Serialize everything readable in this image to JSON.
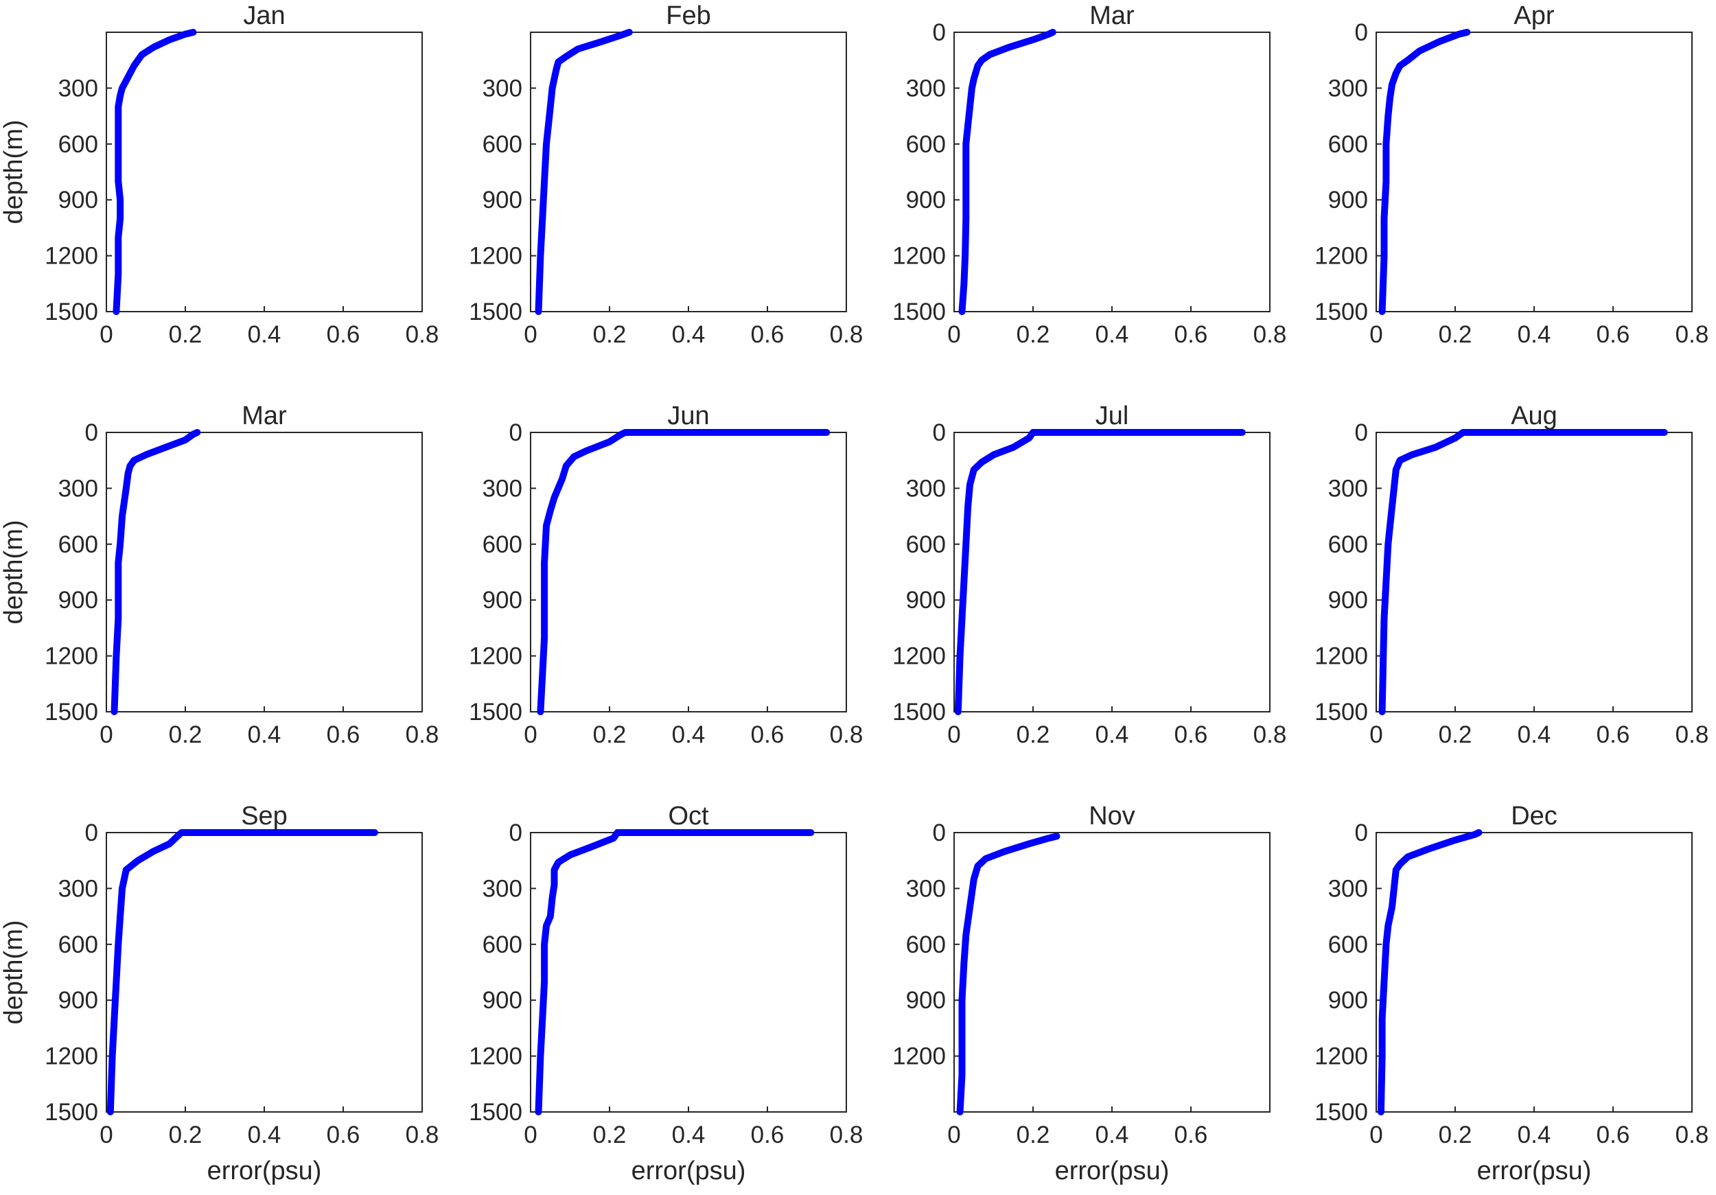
{
  "figure": {
    "line_color": "#0000ff"
  },
  "chart_data": [
    {
      "type": "line",
      "title": "Jan",
      "xlabel": "",
      "ylabel": "depth(m)",
      "xlim": [
        0,
        0.8
      ],
      "ylim": [
        0,
        1500
      ],
      "y_reversed": true,
      "xticks": [
        "0",
        "0.2",
        "0.4",
        "0.6",
        "0.8"
      ],
      "yticks": [
        "300",
        "600",
        "900",
        "1200",
        "1500"
      ],
      "series": [
        {
          "x": [
            0.22,
            0.2,
            0.16,
            0.12,
            0.09,
            0.08,
            0.07,
            0.06,
            0.05,
            0.04,
            0.035,
            0.03,
            0.03,
            0.03,
            0.03,
            0.03,
            0.035,
            0.035,
            0.03,
            0.03,
            0.025
          ],
          "y": [
            0,
            10,
            40,
            80,
            120,
            150,
            180,
            220,
            260,
            300,
            340,
            400,
            500,
            600,
            700,
            800,
            900,
            1000,
            1100,
            1300,
            1500
          ]
        }
      ]
    },
    {
      "type": "line",
      "title": "Feb",
      "xlabel": "",
      "ylabel": "",
      "xlim": [
        0,
        0.8
      ],
      "ylim": [
        0,
        1500
      ],
      "y_reversed": true,
      "xticks": [
        "0",
        "0.2",
        "0.4",
        "0.6",
        "0.8"
      ],
      "yticks": [
        "300",
        "600",
        "900",
        "1200",
        "1500"
      ],
      "series": [
        {
          "x": [
            0.25,
            0.23,
            0.18,
            0.12,
            0.09,
            0.07,
            0.065,
            0.06,
            0.055,
            0.05,
            0.045,
            0.04,
            0.035,
            0.03,
            0.025,
            0.02
          ],
          "y": [
            0,
            15,
            50,
            90,
            130,
            160,
            200,
            250,
            300,
            400,
            500,
            600,
            800,
            1000,
            1200,
            1500
          ]
        }
      ]
    },
    {
      "type": "line",
      "title": "Mar",
      "xlabel": "",
      "ylabel": "",
      "xlim": [
        0,
        0.8
      ],
      "ylim": [
        0,
        1500
      ],
      "y_reversed": true,
      "xticks": [
        "0",
        "0.2",
        "0.4",
        "0.6",
        "0.8"
      ],
      "yticks": [
        "0",
        "300",
        "600",
        "900",
        "1200",
        "1500"
      ],
      "series": [
        {
          "x": [
            0.25,
            0.24,
            0.2,
            0.14,
            0.09,
            0.07,
            0.06,
            0.05,
            0.045,
            0.04,
            0.035,
            0.03,
            0.03,
            0.03,
            0.03,
            0.028,
            0.025,
            0.02
          ],
          "y": [
            0,
            10,
            40,
            80,
            120,
            150,
            180,
            250,
            300,
            400,
            500,
            600,
            700,
            800,
            1000,
            1200,
            1350,
            1500
          ]
        }
      ]
    },
    {
      "type": "line",
      "title": "Apr",
      "xlabel": "",
      "ylabel": "",
      "xlim": [
        0,
        0.8
      ],
      "ylim": [
        0,
        1500
      ],
      "y_reversed": true,
      "xticks": [
        "0",
        "0.2",
        "0.4",
        "0.6",
        "0.8"
      ],
      "yticks": [
        "0",
        "300",
        "600",
        "900",
        "1200",
        "1500"
      ],
      "series": [
        {
          "x": [
            0.23,
            0.21,
            0.16,
            0.11,
            0.08,
            0.06,
            0.05,
            0.04,
            0.035,
            0.03,
            0.025,
            0.025,
            0.02,
            0.02,
            0.015
          ],
          "y": [
            0,
            10,
            50,
            100,
            150,
            180,
            220,
            280,
            350,
            450,
            600,
            800,
            1000,
            1200,
            1500
          ]
        }
      ]
    },
    {
      "type": "line",
      "title": "Mar",
      "xlabel": "",
      "ylabel": "depth(m)",
      "xlim": [
        0,
        0.8
      ],
      "ylim": [
        0,
        1500
      ],
      "y_reversed": true,
      "xticks": [
        "0",
        "0.2",
        "0.4",
        "0.6",
        "0.8"
      ],
      "yticks": [
        "0",
        "300",
        "600",
        "900",
        "1200",
        "1500"
      ],
      "series": [
        {
          "x": [
            0.23,
            0.22,
            0.2,
            0.15,
            0.1,
            0.07,
            0.06,
            0.055,
            0.05,
            0.04,
            0.035,
            0.03,
            0.03,
            0.03,
            0.025,
            0.02
          ],
          "y": [
            0,
            10,
            40,
            80,
            120,
            150,
            180,
            220,
            300,
            450,
            600,
            700,
            800,
            1000,
            1200,
            1500
          ]
        }
      ]
    },
    {
      "type": "line",
      "title": "Jun",
      "xlabel": "",
      "ylabel": "",
      "xlim": [
        0,
        0.8
      ],
      "ylim": [
        0,
        1500
      ],
      "y_reversed": true,
      "xticks": [
        "0",
        "0.2",
        "0.4",
        "0.6",
        "0.8"
      ],
      "yticks": [
        "0",
        "300",
        "600",
        "900",
        "1200",
        "1500"
      ],
      "series": [
        {
          "x": [
            0.75,
            0.24,
            0.23,
            0.2,
            0.14,
            0.11,
            0.09,
            0.08,
            0.06,
            0.05,
            0.04,
            0.035,
            0.035,
            0.035,
            0.03,
            0.025
          ],
          "y": [
            0,
            0,
            10,
            50,
            100,
            130,
            180,
            250,
            350,
            420,
            500,
            700,
            900,
            1100,
            1300,
            1500
          ]
        }
      ]
    },
    {
      "type": "line",
      "title": "Jul",
      "xlabel": "",
      "ylabel": "",
      "xlim": [
        0,
        0.8
      ],
      "ylim": [
        0,
        1500
      ],
      "y_reversed": true,
      "xticks": [
        "0",
        "0.2",
        "0.4",
        "0.6",
        "0.8"
      ],
      "yticks": [
        "0",
        "300",
        "600",
        "900",
        "1200",
        "1500"
      ],
      "series": [
        {
          "x": [
            0.73,
            0.2,
            0.19,
            0.15,
            0.1,
            0.07,
            0.05,
            0.04,
            0.035,
            0.03,
            0.025,
            0.02,
            0.015,
            0.01
          ],
          "y": [
            0,
            0,
            30,
            80,
            120,
            160,
            200,
            280,
            400,
            600,
            800,
            1000,
            1200,
            1500
          ]
        }
      ]
    },
    {
      "type": "line",
      "title": "Aug",
      "xlabel": "",
      "ylabel": "",
      "xlim": [
        0,
        0.8
      ],
      "ylim": [
        0,
        1500
      ],
      "y_reversed": true,
      "xticks": [
        "0",
        "0.2",
        "0.4",
        "0.6",
        "0.8"
      ],
      "yticks": [
        "0",
        "300",
        "600",
        "900",
        "1200",
        "1500"
      ],
      "series": [
        {
          "x": [
            0.73,
            0.22,
            0.2,
            0.15,
            0.09,
            0.06,
            0.05,
            0.045,
            0.04,
            0.035,
            0.03,
            0.025,
            0.02,
            0.018,
            0.015
          ],
          "y": [
            0,
            0,
            30,
            80,
            120,
            150,
            200,
            300,
            400,
            500,
            600,
            800,
            1000,
            1200,
            1500
          ]
        }
      ]
    },
    {
      "type": "line",
      "title": "Sep",
      "xlabel": "error(psu)",
      "ylabel": "depth(m)",
      "xlim": [
        0,
        0.8
      ],
      "ylim": [
        0,
        1500
      ],
      "y_reversed": true,
      "xticks": [
        "0",
        "0.2",
        "0.4",
        "0.6",
        "0.8"
      ],
      "yticks": [
        "0",
        "300",
        "600",
        "900",
        "1200",
        "1500"
      ],
      "series": [
        {
          "x": [
            0.68,
            0.19,
            0.18,
            0.16,
            0.12,
            0.08,
            0.05,
            0.04,
            0.035,
            0.03,
            0.025,
            0.02,
            0.015,
            0.01
          ],
          "y": [
            0,
            0,
            20,
            60,
            100,
            150,
            200,
            300,
            450,
            600,
            800,
            1000,
            1200,
            1500
          ]
        }
      ]
    },
    {
      "type": "line",
      "title": "Oct",
      "xlabel": "error(psu)",
      "ylabel": "",
      "xlim": [
        0,
        0.8
      ],
      "ylim": [
        0,
        1500
      ],
      "y_reversed": true,
      "xticks": [
        "0",
        "0.2",
        "0.4",
        "0.6",
        "0.8"
      ],
      "yticks": [
        "0",
        "300",
        "600",
        "900",
        "1200",
        "1500"
      ],
      "series": [
        {
          "x": [
            0.71,
            0.22,
            0.21,
            0.15,
            0.1,
            0.07,
            0.06,
            0.06,
            0.055,
            0.05,
            0.04,
            0.035,
            0.035,
            0.03,
            0.025,
            0.02
          ],
          "y": [
            0,
            0,
            30,
            80,
            120,
            160,
            200,
            280,
            350,
            450,
            500,
            600,
            800,
            1000,
            1200,
            1500
          ]
        }
      ]
    },
    {
      "type": "line",
      "title": "Nov",
      "xlabel": "error(psu)",
      "ylabel": "",
      "xlim": [
        0,
        0.8
      ],
      "ylim": [
        0,
        1500
      ],
      "y_reversed": true,
      "xticks": [
        "0",
        "0.2",
        "0.4",
        "0.6"
      ],
      "yticks": [
        "0",
        "300",
        "600",
        "900",
        "1200"
      ],
      "series": [
        {
          "x": [
            0.26,
            0.24,
            0.19,
            0.13,
            0.08,
            0.06,
            0.05,
            0.04,
            0.03,
            0.025,
            0.02,
            0.02,
            0.02,
            0.015
          ],
          "y": [
            20,
            30,
            60,
            100,
            140,
            180,
            250,
            400,
            550,
            700,
            900,
            1100,
            1300,
            1500
          ]
        }
      ]
    },
    {
      "type": "line",
      "title": "Dec",
      "xlabel": "error(psu)",
      "ylabel": "",
      "xlim": [
        0,
        0.8
      ],
      "ylim": [
        0,
        1500
      ],
      "y_reversed": true,
      "xticks": [
        "0",
        "0.2",
        "0.4",
        "0.6",
        "0.8"
      ],
      "yticks": [
        "0",
        "300",
        "600",
        "900",
        "1200",
        "1500"
      ],
      "series": [
        {
          "x": [
            0.26,
            0.25,
            0.2,
            0.13,
            0.08,
            0.06,
            0.05,
            0.045,
            0.04,
            0.03,
            0.025,
            0.02,
            0.015,
            0.015,
            0.012
          ],
          "y": [
            0,
            10,
            40,
            90,
            130,
            170,
            200,
            300,
            400,
            500,
            600,
            800,
            1000,
            1200,
            1500
          ]
        }
      ]
    }
  ]
}
